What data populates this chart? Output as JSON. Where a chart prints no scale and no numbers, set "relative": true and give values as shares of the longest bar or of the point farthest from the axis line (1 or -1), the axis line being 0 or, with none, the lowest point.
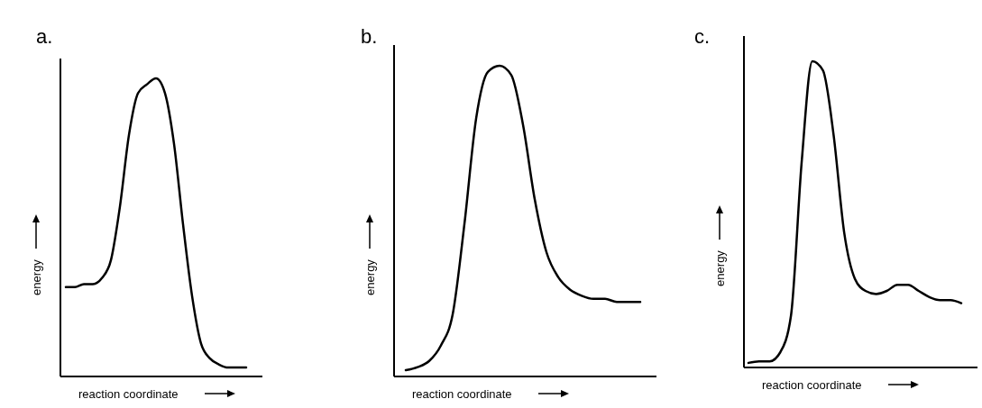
{
  "chart_data": [
    {
      "type": "line",
      "title": "a.",
      "xlabel": "reaction coordinate",
      "ylabel": "energy",
      "relative": true,
      "categories": [
        null,
        null,
        null,
        null,
        null,
        null,
        null,
        null,
        null,
        null,
        null,
        null,
        null,
        null,
        null,
        null,
        null,
        null,
        null,
        null,
        null
      ],
      "series": [
        {
          "color": "#000000",
          "values": [
            0.3,
            0.3,
            0.31,
            0.31,
            0.33,
            0.39,
            0.57,
            0.81,
            0.95,
            0.98,
            1.0,
            0.95,
            0.78,
            0.51,
            0.27,
            0.11,
            0.06,
            0.04,
            0.03,
            0.03,
            0.03
          ]
        }
      ]
    },
    {
      "type": "line",
      "title": "b.",
      "xlabel": "reaction coordinate",
      "ylabel": "energy",
      "relative": true,
      "categories": [
        null,
        null,
        null,
        null,
        null,
        null,
        null,
        null,
        null,
        null,
        null,
        null,
        null,
        null,
        null,
        null,
        null,
        null,
        null,
        null,
        null
      ],
      "series": [
        {
          "color": "#000000",
          "values": [
            0.02,
            0.03,
            0.05,
            0.1,
            0.2,
            0.49,
            0.83,
            0.98,
            1.0,
            0.97,
            0.81,
            0.57,
            0.4,
            0.32,
            0.28,
            0.26,
            0.25,
            0.25,
            0.24,
            0.24,
            0.24
          ]
        }
      ]
    },
    {
      "type": "line",
      "title": "c.",
      "xlabel": "reaction coordinate",
      "ylabel": "energy",
      "relative": true,
      "categories": [
        null,
        null,
        null,
        null,
        null,
        null,
        null,
        null,
        null,
        null,
        null,
        null,
        null,
        null,
        null,
        null,
        null,
        null,
        null,
        null,
        null
      ],
      "series": [
        {
          "color": "#000000",
          "values": [
            0.015,
            0.02,
            0.02,
            0.05,
            0.17,
            0.67,
            1.0,
            0.97,
            0.76,
            0.44,
            0.29,
            0.25,
            0.24,
            0.25,
            0.27,
            0.27,
            0.25,
            0.23,
            0.22,
            0.22,
            0.21
          ]
        }
      ]
    }
  ]
}
